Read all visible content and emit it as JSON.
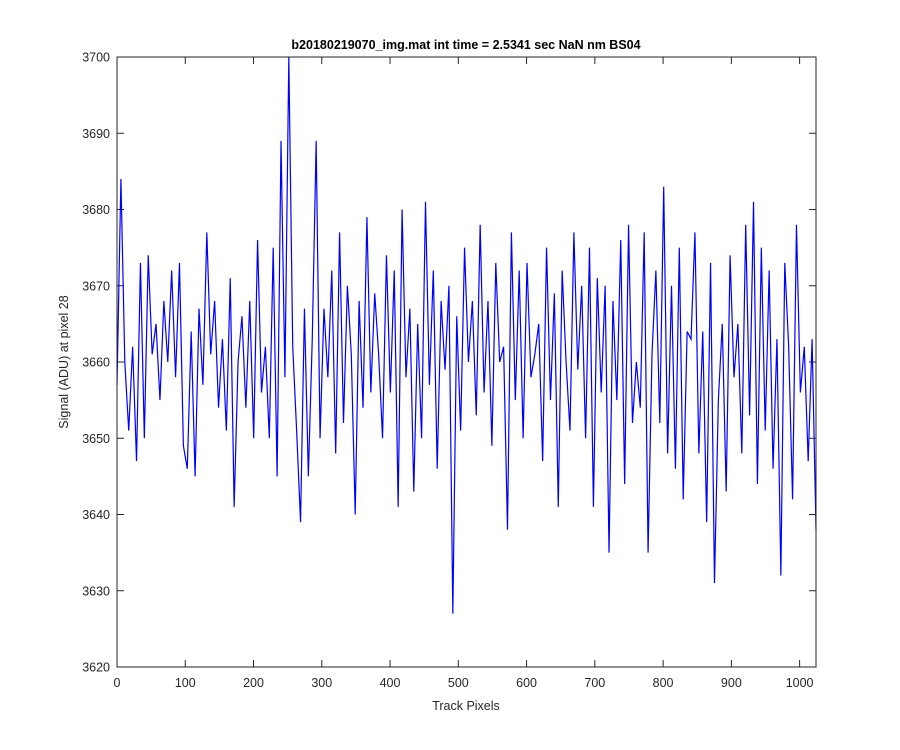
{
  "chart_data": {
    "type": "line",
    "title": "b20180219070_img.mat int time = 2.5341 sec  NaN nm BS04",
    "xlabel": "Track Pixels",
    "ylabel": "Signal (ADU) at pixel 28",
    "xlim": [
      0,
      1024
    ],
    "ylim": [
      3620,
      3700
    ],
    "xticks": [
      0,
      100,
      200,
      300,
      400,
      500,
      600,
      700,
      800,
      900,
      1000
    ],
    "yticks": [
      3620,
      3630,
      3640,
      3650,
      3660,
      3670,
      3680,
      3690,
      3700
    ],
    "grid": false,
    "series": [
      {
        "color": "#0000ff",
        "noise_mean": 3658,
        "approx_range": [
          3627,
          3700
        ],
        "values": [
          3657,
          3684,
          3660,
          3651,
          3662,
          3647,
          3673,
          3650,
          3674,
          3661,
          3665,
          3655,
          3668,
          3660,
          3672,
          3658,
          3673,
          3649,
          3646,
          3664,
          3645,
          3667,
          3657,
          3677,
          3661,
          3668,
          3654,
          3663,
          3651,
          3671,
          3641,
          3660,
          3666,
          3654,
          3668,
          3650,
          3676,
          3656,
          3662,
          3650,
          3675,
          3645,
          3689,
          3658,
          3700,
          3662,
          3651,
          3639,
          3667,
          3645,
          3663,
          3689,
          3650,
          3667,
          3658,
          3672,
          3648,
          3677,
          3652,
          3670,
          3661,
          3640,
          3668,
          3654,
          3679,
          3656,
          3669,
          3661,
          3650,
          3674,
          3656,
          3672,
          3641,
          3680,
          3658,
          3667,
          3643,
          3665,
          3650,
          3681,
          3657,
          3672,
          3646,
          3668,
          3659,
          3670,
          3627,
          3666,
          3651,
          3675,
          3660,
          3668,
          3653,
          3678,
          3656,
          3668,
          3649,
          3673,
          3660,
          3662,
          3638,
          3677,
          3655,
          3672,
          3650,
          3673,
          3658,
          3661,
          3665,
          3647,
          3675,
          3655,
          3669,
          3641,
          3672,
          3660,
          3651,
          3677,
          3659,
          3670,
          3650,
          3675,
          3641,
          3671,
          3656,
          3670,
          3635,
          3668,
          3655,
          3676,
          3644,
          3678,
          3652,
          3660,
          3654,
          3677,
          3635,
          3661,
          3672,
          3652,
          3683,
          3648,
          3670,
          3646,
          3675,
          3642,
          3664,
          3663,
          3677,
          3648,
          3664,
          3639,
          3673,
          3631,
          3655,
          3665,
          3643,
          3674,
          3658,
          3665,
          3648,
          3678,
          3653,
          3681,
          3644,
          3675,
          3651,
          3672,
          3646,
          3663,
          3632,
          3673,
          3662,
          3642,
          3678,
          3656,
          3662,
          3647,
          3663,
          3638
        ]
      }
    ]
  }
}
